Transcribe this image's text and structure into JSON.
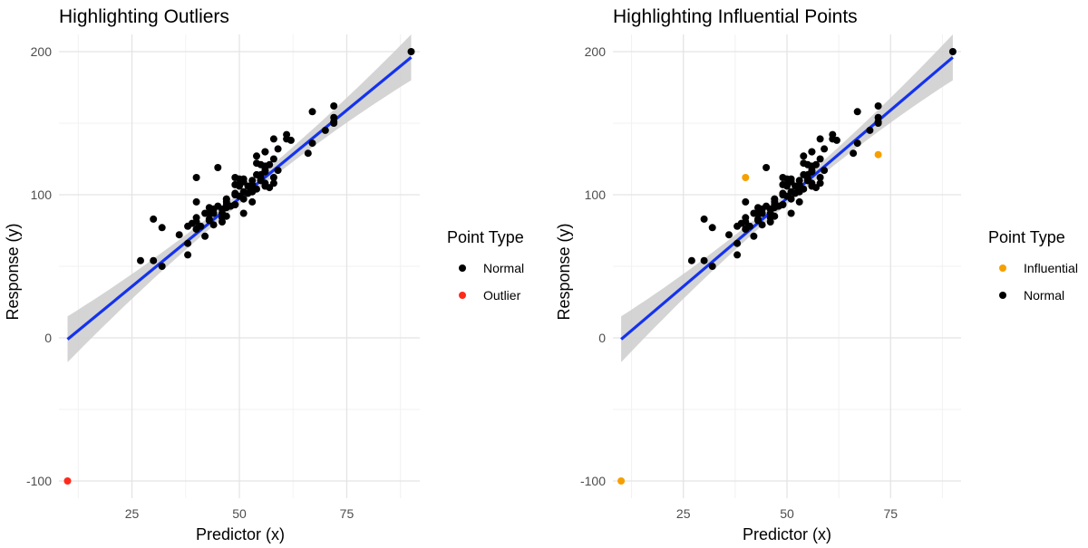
{
  "chart_data": [
    {
      "type": "scatter",
      "title": "Highlighting Outliers",
      "xlabel": "Predictor (x)",
      "ylabel": "Response (y)",
      "xlim": [
        8,
        92
      ],
      "ylim": [
        -112,
        212
      ],
      "xticks": [
        25,
        50,
        75
      ],
      "yticks": [
        -100,
        0,
        100,
        200
      ],
      "grid": true,
      "legend": {
        "title": "Point Type",
        "placement": "right",
        "entries": [
          {
            "label": "Normal",
            "color": "#000000"
          },
          {
            "label": "Outlier",
            "color": "#ff2a1a"
          }
        ]
      },
      "fit_line": {
        "x": [
          10,
          90
        ],
        "y": [
          -1,
          196
        ],
        "color": "#1432ee",
        "band_color": "#cccccc"
      },
      "series": [
        {
          "name": "Normal",
          "color": "#000000",
          "points": []
        },
        {
          "name": "Outlier",
          "color": "#ff2a1a",
          "points": [
            [
              10,
              -100
            ]
          ]
        }
      ]
    },
    {
      "type": "scatter",
      "title": "Highlighting Influential Points",
      "xlabel": "Predictor (x)",
      "ylabel": "Response (y)",
      "xlim": [
        8,
        92
      ],
      "ylim": [
        -112,
        212
      ],
      "xticks": [
        25,
        50,
        75
      ],
      "yticks": [
        -100,
        0,
        100,
        200
      ],
      "grid": true,
      "legend": {
        "title": "Point Type",
        "placement": "right",
        "entries": [
          {
            "label": "Influential",
            "color": "#f5a000"
          },
          {
            "label": "Normal",
            "color": "#000000"
          }
        ]
      },
      "fit_line": {
        "x": [
          10,
          90
        ],
        "y": [
          -1,
          196
        ],
        "color": "#1432ee",
        "band_color": "#cccccc"
      },
      "series": [
        {
          "name": "Influential",
          "color": "#f5a000",
          "points": [
            [
              10,
              -100
            ],
            [
              40,
              112
            ],
            [
              72,
              128
            ]
          ]
        },
        {
          "name": "Normal",
          "color": "#000000",
          "points": []
        }
      ]
    }
  ]
}
